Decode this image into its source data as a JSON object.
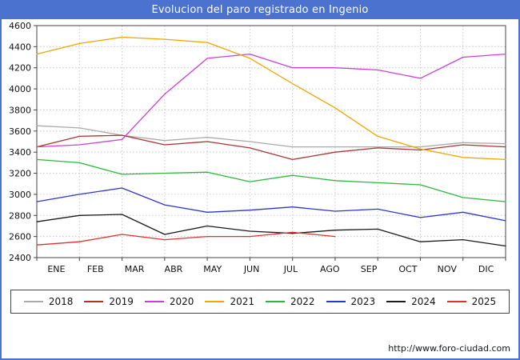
{
  "title": "Evolucion del paro registrado en Ingenio",
  "footer": {
    "url": "http://www.foro-ciudad.com"
  },
  "colors": {
    "frame": "#4b72cf",
    "title_text": "#ffffff",
    "grid": "#c8c8c8",
    "axis": "#444444",
    "text": "#111111"
  },
  "chart_data": {
    "type": "line",
    "title": "Evolucion del paro registrado en Ingenio",
    "xlabel": "",
    "ylabel": "",
    "categories": [
      "ENE",
      "FEB",
      "MAR",
      "ABR",
      "MAY",
      "JUN",
      "JUL",
      "AGO",
      "SEP",
      "OCT",
      "NOV",
      "DIC"
    ],
    "ylim": [
      2400,
      4600
    ],
    "ytick_step": 200,
    "grid": true,
    "legend_position": "bottom",
    "series": [
      {
        "name": "2018",
        "color": "#aaaaaa",
        "values": [
          3650,
          3630,
          3560,
          3510,
          3540,
          3500,
          3450,
          3450,
          3450,
          3450,
          3490,
          3480
        ]
      },
      {
        "name": "2019",
        "color": "#a93434",
        "values": [
          3450,
          3550,
          3560,
          3470,
          3500,
          3440,
          3330,
          3400,
          3440,
          3420,
          3470,
          3450
        ]
      },
      {
        "name": "2020",
        "color": "#cc3fd6",
        "values": [
          3450,
          3470,
          3520,
          3950,
          4290,
          4330,
          4200,
          4200,
          4180,
          4100,
          4300,
          4330
        ]
      },
      {
        "name": "2021",
        "color": "#f2a500",
        "values": [
          4330,
          4430,
          4490,
          4470,
          4440,
          4290,
          4050,
          3820,
          3550,
          3430,
          3350,
          3330
        ]
      },
      {
        "name": "2022",
        "color": "#2db83d",
        "values": [
          3330,
          3300,
          3190,
          3200,
          3210,
          3120,
          3180,
          3130,
          3110,
          3090,
          2970,
          2930
        ]
      },
      {
        "name": "2023",
        "color": "#2b36cf",
        "values": [
          2930,
          3000,
          3060,
          2900,
          2830,
          2850,
          2880,
          2840,
          2860,
          2780,
          2830,
          2750
        ]
      },
      {
        "name": "2024",
        "color": "#1a1a1a",
        "values": [
          2740,
          2800,
          2810,
          2620,
          2700,
          2650,
          2630,
          2660,
          2670,
          2550,
          2570,
          2510
        ]
      },
      {
        "name": "2025",
        "color": "#e03131",
        "values": [
          2520,
          2550,
          2620,
          2570,
          2600,
          2600,
          2640,
          2600
        ]
      }
    ]
  }
}
